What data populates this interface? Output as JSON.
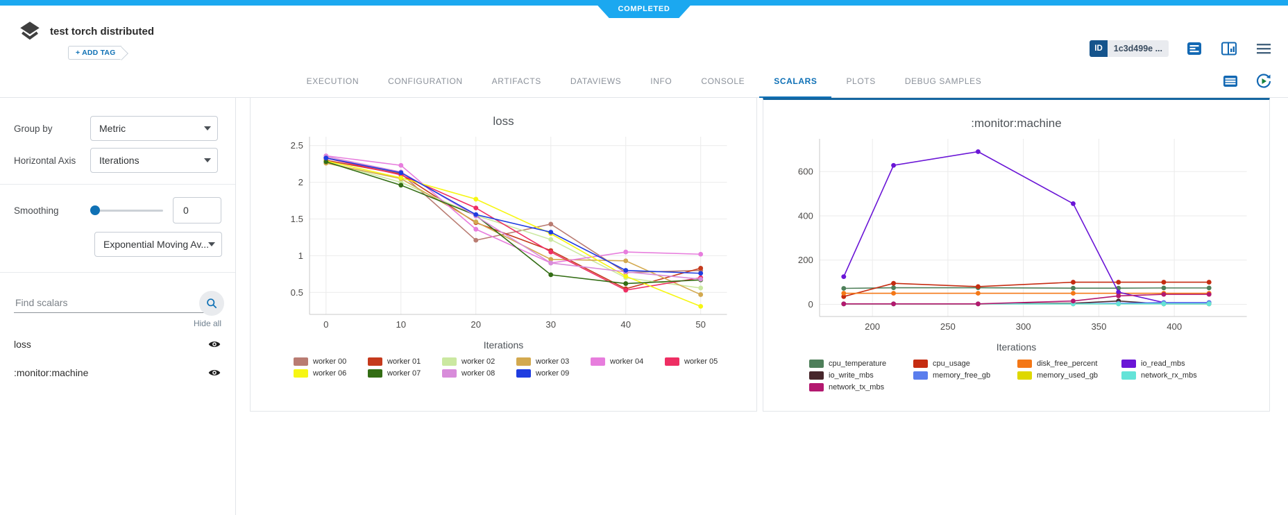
{
  "status_ribbon": {
    "label": "COMPLETED",
    "color": "#1ba8f0"
  },
  "header": {
    "title": "test torch distributed",
    "add_tag_label": "+ ADD TAG",
    "id_badge": {
      "label": "ID",
      "value": "1c3d499e ..."
    }
  },
  "tabs": {
    "items": [
      "EXECUTION",
      "CONFIGURATION",
      "ARTIFACTS",
      "DATAVIEWS",
      "INFO",
      "CONSOLE",
      "SCALARS",
      "PLOTS",
      "DEBUG SAMPLES"
    ],
    "active": "SCALARS"
  },
  "sidebar": {
    "group_by": {
      "label": "Group by",
      "value": "Metric"
    },
    "horizontal_axis": {
      "label": "Horizontal Axis",
      "value": "Iterations"
    },
    "smoothing": {
      "label": "Smoothing",
      "value": "0",
      "algorithm": "Exponential Moving Av..."
    },
    "search": {
      "placeholder": "Find scalars"
    },
    "hide_all_label": "Hide all",
    "metrics": [
      {
        "name": "loss",
        "visible": true
      },
      {
        "name": ":monitor:machine",
        "visible": true
      }
    ]
  },
  "icons": [
    "experiment-icon",
    "console-log-icon",
    "columns-layout-icon",
    "menu-icon",
    "table-view-icon",
    "refresh-icon",
    "search-icon",
    "eye-icon",
    "chevron-down-icon"
  ],
  "colors": {
    "ribbon_blue": "#1ba8f0",
    "accent_blue": "#0f71b5",
    "card_accent_top": "#1566a0"
  },
  "chart_data": [
    {
      "type": "line",
      "title": "loss",
      "xlabel": "Iterations",
      "x": [
        0,
        10,
        20,
        30,
        40,
        50
      ],
      "xlim": [
        -2.2,
        53.5
      ],
      "ylim": [
        0.2,
        2.62
      ],
      "xticks": [
        0,
        10,
        20,
        30,
        40,
        50
      ],
      "yticks": [
        0.5,
        1,
        1.5,
        2,
        2.5
      ],
      "grid": true,
      "legend_position": "bottom",
      "series": [
        {
          "name": "worker 00",
          "color": "#b97c72",
          "values": [
            2.33,
            2.12,
            1.21,
            1.43,
            0.77,
            0.8
          ]
        },
        {
          "name": "worker 01",
          "color": "#c53a1c",
          "values": [
            2.3,
            2.11,
            1.45,
            1.07,
            0.55,
            0.83
          ]
        },
        {
          "name": "worker 02",
          "color": "#cbe8a1",
          "values": [
            2.28,
            2.0,
            1.55,
            1.22,
            0.7,
            0.56
          ]
        },
        {
          "name": "worker 03",
          "color": "#d3a94f",
          "values": [
            2.26,
            2.05,
            1.46,
            0.95,
            0.93,
            0.47
          ]
        },
        {
          "name": "worker 04",
          "color": "#e77ddd",
          "values": [
            2.36,
            2.23,
            1.36,
            0.9,
            1.05,
            1.02
          ]
        },
        {
          "name": "worker 05",
          "color": "#ee2e63",
          "values": [
            2.33,
            2.1,
            1.65,
            1.05,
            0.53,
            0.7
          ]
        },
        {
          "name": "worker 06",
          "color": "#f6f613",
          "values": [
            2.29,
            2.06,
            1.77,
            1.3,
            0.72,
            0.31
          ]
        },
        {
          "name": "worker 07",
          "color": "#336d14",
          "values": [
            2.28,
            1.96,
            1.55,
            0.74,
            0.62,
            0.67
          ]
        },
        {
          "name": "worker 08",
          "color": "#d88cda",
          "values": [
            2.35,
            2.14,
            1.54,
            0.9,
            0.78,
            0.68
          ]
        },
        {
          "name": "worker 09",
          "color": "#1f3de0",
          "values": [
            2.33,
            2.13,
            1.56,
            1.32,
            0.8,
            0.76
          ]
        }
      ]
    },
    {
      "type": "line",
      "title": ":monitor:machine",
      "xlabel": "Iterations",
      "x": [
        181,
        214,
        270,
        333,
        363,
        393,
        423
      ],
      "xlim": [
        165,
        448
      ],
      "ylim": [
        -55,
        748
      ],
      "xticks": [
        200,
        250,
        300,
        350,
        400
      ],
      "yticks": [
        0,
        200,
        400,
        600
      ],
      "grid": true,
      "legend_position": "bottom",
      "series": [
        {
          "name": "cpu_temperature",
          "color": "#4e7f5a",
          "values": [
            72,
            75,
            75,
            73,
            73,
            74,
            74
          ]
        },
        {
          "name": "cpu_usage",
          "color": "#c52c11",
          "values": [
            35,
            95,
            80,
            100,
            100,
            100,
            100
          ]
        },
        {
          "name": "disk_free_percent",
          "color": "#f47716",
          "values": [
            50,
            50,
            50,
            50,
            50,
            50,
            50
          ]
        },
        {
          "name": "io_read_mbs",
          "color": "#6a15d6",
          "values": [
            125,
            628,
            690,
            455,
            55,
            8,
            8
          ]
        },
        {
          "name": "io_write_mbs",
          "color": "#47262b",
          "values": [
            2,
            2,
            2,
            5,
            15,
            2,
            2
          ]
        },
        {
          "name": "memory_free_gb",
          "color": "#5a7ded",
          "values": [
            2,
            2,
            2,
            2,
            5,
            8,
            8
          ]
        },
        {
          "name": "memory_used_gb",
          "color": "#ded800",
          "values": [
            2,
            2,
            2,
            2,
            2,
            2,
            2
          ]
        },
        {
          "name": "network_rx_mbs",
          "color": "#63e3d8",
          "values": [
            2,
            2,
            2,
            2,
            2,
            2,
            2
          ]
        },
        {
          "name": "network_tx_mbs",
          "color": "#b3186f",
          "values": [
            2,
            2,
            2,
            15,
            38,
            45,
            45
          ]
        }
      ]
    }
  ]
}
